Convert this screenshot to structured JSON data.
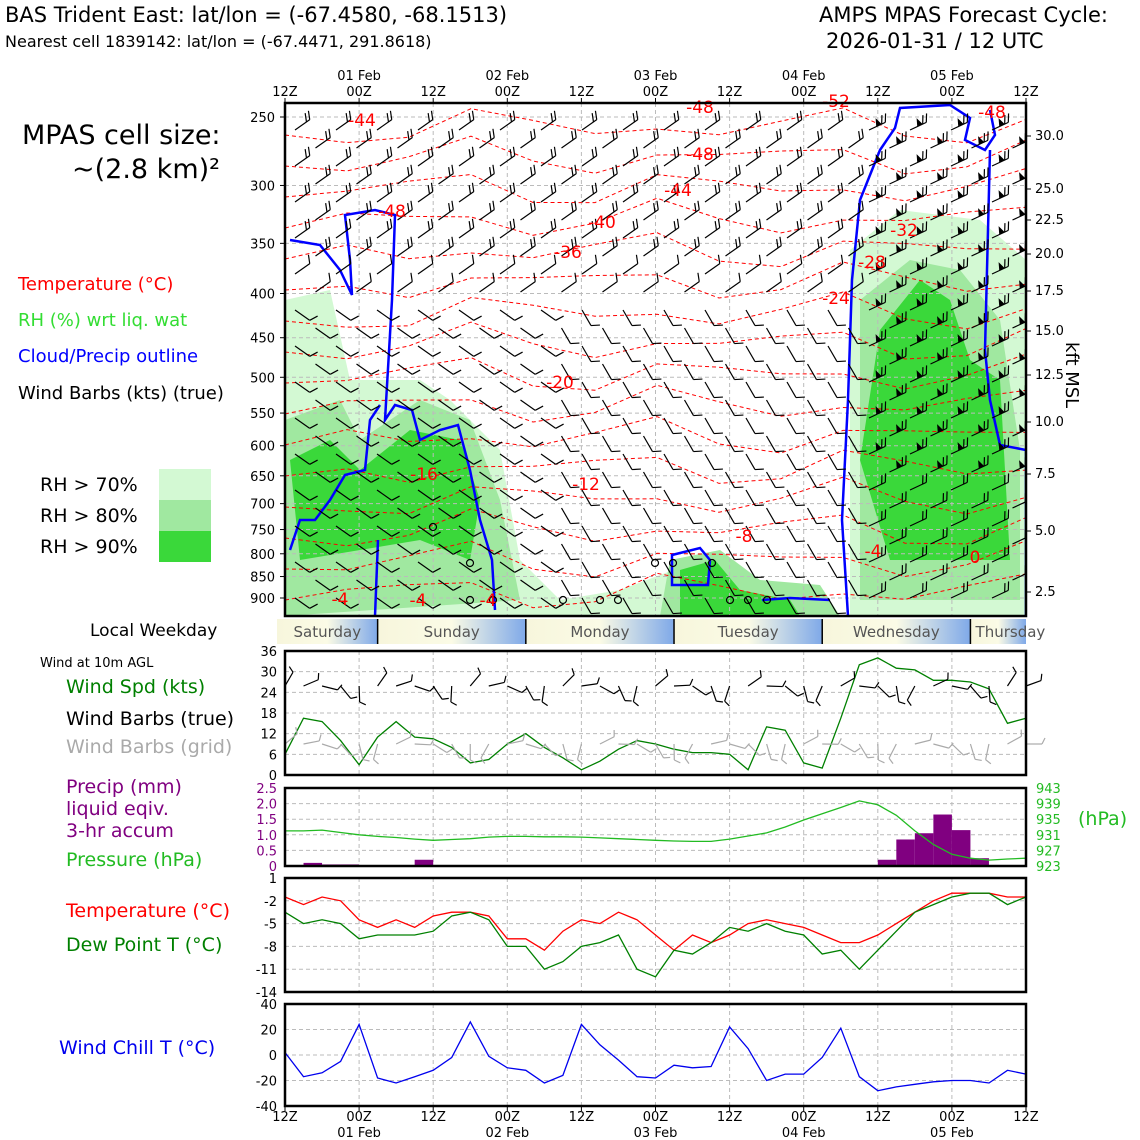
{
  "header": {
    "station_line": "BAS Trident East: lat/lon = (-67.4580, -68.1513)",
    "cell_line": "Nearest cell 1839142: lat/lon = (-67.4471, 291.8618)",
    "forecast_title": "AMPS MPAS Forecast Cycle:",
    "forecast_cycle": "2026-01-31 / 12 UTC"
  },
  "cell_size": {
    "line1": "MPAS cell size:",
    "line2": "~(2.8 km)²"
  },
  "legend": {
    "temperature": "Temperature (°C)",
    "rh": "RH (%) wrt liq. wat",
    "cloud": "Cloud/Precip outline",
    "wind": "Wind Barbs (kts) (true)",
    "rh_levels": [
      "RH > 70%",
      "RH > 80%",
      "RH > 90%"
    ],
    "rh_colors": [
      "#d3f9d3",
      "#a0e8a0",
      "#3ad83a"
    ]
  },
  "colors": {
    "temperature": "#ff0000",
    "rh_text": "#33dd33",
    "cloud": "#0000ff",
    "wind_speed": "#008000",
    "wind_grid": "#aaaaaa",
    "precip": "#800080",
    "pressure": "#22bb22",
    "dewpoint": "#008000",
    "windchill": "#0000ee"
  },
  "chart_data": [
    {
      "type": "heatmap",
      "title": "Vertical profile",
      "time_ticks": [
        "12Z",
        "00Z",
        "12Z",
        "00Z",
        "12Z",
        "00Z",
        "12Z",
        "00Z",
        "12Z",
        "00Z",
        "12Z"
      ],
      "date_labels": [
        "01 Feb",
        "02 Feb",
        "03 Feb",
        "04 Feb",
        "05 Feb"
      ],
      "ylabel_right": "kft MSL",
      "pressure_ticks": [
        250,
        300,
        350,
        400,
        450,
        500,
        550,
        600,
        650,
        700,
        750,
        800,
        850,
        900
      ],
      "height_ticks": [
        "30.0",
        "25.0",
        "22.5",
        "20.0",
        "17.5",
        "15.0",
        "12.5",
        "10.0",
        "7.5",
        "5.0",
        "2.5"
      ],
      "ylim": [
        250,
        920
      ],
      "temperature_labels": [
        "-44",
        "-48",
        "-48",
        "-48",
        "-52",
        "-48",
        "-44",
        "-40",
        "-36",
        "-32",
        "-28",
        "-24",
        "-20",
        "-16",
        "-12",
        "-8",
        "-4",
        "-4",
        "-4",
        "-4",
        "0"
      ],
      "grid": true
    },
    {
      "type": "line",
      "title": "Wind at 10m AGL",
      "weekday_label": "Local Weekday",
      "weekdays": [
        "Saturday",
        "Sunday",
        "Monday",
        "Tuesday",
        "Wednesday",
        "Thursday"
      ],
      "labels": [
        "Wind Spd (kts)",
        "Wind Barbs (true)",
        "Wind Barbs (grid)"
      ],
      "yticks": [
        "36",
        "30",
        "24",
        "18",
        "12",
        "6",
        "0"
      ],
      "ylim": [
        0,
        36
      ],
      "x": [
        0,
        3,
        6,
        9,
        12,
        15,
        18,
        21,
        24,
        27,
        30,
        33,
        36,
        39,
        42,
        45,
        48,
        51,
        54,
        57,
        60,
        63,
        66,
        69,
        72,
        75,
        78,
        81,
        84,
        87,
        90,
        93,
        96,
        99,
        102,
        105,
        108,
        111,
        114,
        117,
        120
      ],
      "series": [
        {
          "name": "Wind Spd (kts)",
          "values": [
            6,
            16.5,
            15.5,
            10,
            3,
            11,
            15.5,
            11,
            10.5,
            8,
            3.5,
            4.5,
            9,
            12,
            8,
            5,
            1.5,
            4,
            7.5,
            10,
            9,
            7.5,
            6.5,
            6.5,
            6,
            1.5,
            14,
            13,
            3.5,
            2,
            16.5,
            32,
            34,
            31,
            30.5,
            27.5,
            27.5,
            27,
            25,
            15,
            16.5
          ]
        }
      ]
    },
    {
      "type": "bar",
      "title": "Precip / Pressure",
      "labels": [
        "Precip (mm)",
        "liquid eqiv.",
        "3-hr accum",
        "Pressure (hPa)"
      ],
      "unit_right": "(hPa)",
      "yticks_left": [
        "2.5",
        "2.0",
        "1.5",
        "1.0",
        "0.5",
        "0"
      ],
      "yticks_right": [
        "943",
        "939",
        "935",
        "931",
        "927",
        "923"
      ],
      "ylim": [
        0,
        2.5
      ],
      "ylim_right": [
        923,
        943
      ],
      "x": [
        0,
        3,
        6,
        9,
        12,
        15,
        18,
        21,
        24,
        27,
        30,
        33,
        36,
        39,
        42,
        45,
        48,
        51,
        54,
        57,
        60,
        63,
        66,
        69,
        72,
        75,
        78,
        81,
        84,
        87,
        90,
        93,
        96,
        99,
        102,
        105,
        108,
        111,
        114,
        117,
        120
      ],
      "series": [
        {
          "name": "Precip (mm)",
          "values": [
            0,
            0.1,
            0.05,
            0.05,
            0,
            0,
            0,
            0.2,
            0,
            0,
            0,
            0,
            0,
            0,
            0,
            0,
            0,
            0,
            0,
            0,
            0,
            0,
            0,
            0,
            0,
            0,
            0,
            0,
            0,
            0,
            0,
            0,
            0.2,
            0.85,
            1.05,
            1.65,
            1.15,
            0.25,
            0,
            0,
            0
          ]
        },
        {
          "name": "Pressure (hPa)",
          "values": [
            932,
            932,
            932.2,
            931.6,
            931,
            930.6,
            930.3,
            929.9,
            929.6,
            929.8,
            930,
            930.4,
            930.6,
            930.6,
            930.5,
            930.5,
            930.4,
            930.2,
            930,
            929.8,
            929.6,
            929.4,
            929.3,
            929.3,
            929.9,
            930.7,
            931.5,
            933,
            934.8,
            936.4,
            938,
            939.7,
            938.7,
            936,
            932,
            928.5,
            926,
            925,
            924.5,
            924.8,
            925
          ]
        }
      ]
    },
    {
      "type": "line",
      "title": "Temperature / Dew Point",
      "labels": [
        "Temperature (°C)",
        "Dew Point T (°C)"
      ],
      "yticks": [
        "1",
        "-2",
        "-5",
        "-8",
        "-11",
        "-14"
      ],
      "ylim": [
        -14,
        1
      ],
      "x": [
        0,
        3,
        6,
        9,
        12,
        15,
        18,
        21,
        24,
        27,
        30,
        33,
        36,
        39,
        42,
        45,
        48,
        51,
        54,
        57,
        60,
        63,
        66,
        69,
        72,
        75,
        78,
        81,
        84,
        87,
        90,
        93,
        96,
        99,
        102,
        105,
        108,
        111,
        114,
        117,
        120
      ],
      "series": [
        {
          "name": "Temperature (°C)",
          "values": [
            -1.5,
            -2.5,
            -1.5,
            -2,
            -4.5,
            -5.5,
            -4.5,
            -5.5,
            -4,
            -3.5,
            -3.5,
            -4,
            -7,
            -7,
            -8.5,
            -6,
            -4.5,
            -5,
            -3.5,
            -4.5,
            -6.5,
            -8.5,
            -6.5,
            -7.5,
            -6.5,
            -5,
            -4.5,
            -5,
            -5.5,
            -6.5,
            -7.5,
            -7.5,
            -6.5,
            -5,
            -3.5,
            -2,
            -1,
            -1,
            -1,
            -1.5,
            -1.5
          ]
        },
        {
          "name": "Dew Point T (°C)",
          "values": [
            -3.5,
            -5,
            -4.5,
            -5,
            -7,
            -6.5,
            -6.5,
            -6.5,
            -6,
            -4,
            -3.5,
            -4.5,
            -8,
            -8,
            -11,
            -10,
            -8,
            -7.5,
            -6.5,
            -11,
            -12,
            -8.5,
            -9,
            -7.5,
            -5.5,
            -6,
            -5,
            -6,
            -6.5,
            -9,
            -8.5,
            -11,
            -8.5,
            -6,
            -3.5,
            -2.5,
            -1.5,
            -1,
            -1,
            -2.5,
            -1.5
          ]
        }
      ]
    },
    {
      "type": "line",
      "title": "Wind Chill",
      "labels": [
        "Wind Chill T (°C)"
      ],
      "yticks": [
        "40",
        "20",
        "0",
        "-20",
        "-40"
      ],
      "ylim": [
        -40,
        40
      ],
      "x": [
        0,
        3,
        6,
        9,
        12,
        15,
        18,
        21,
        24,
        27,
        30,
        33,
        36,
        39,
        42,
        45,
        48,
        51,
        54,
        57,
        60,
        63,
        66,
        69,
        72,
        75,
        78,
        81,
        84,
        87,
        90,
        93,
        96,
        99,
        102,
        105,
        108,
        111,
        114,
        117,
        120
      ],
      "series": [
        {
          "name": "Wind Chill T (°C)",
          "values": [
            2,
            -17,
            -14,
            -5,
            24,
            -18,
            -22,
            -17,
            -12,
            -2,
            26,
            -1,
            -10,
            -12,
            -22,
            -16,
            24,
            8,
            -4,
            -17,
            -18,
            -8,
            -10,
            -9,
            22,
            5,
            -20,
            -15,
            -15,
            -2,
            21,
            -17,
            -28,
            -25,
            -23,
            -21,
            -20,
            -20,
            -22,
            -12,
            -15
          ]
        }
      ]
    }
  ]
}
